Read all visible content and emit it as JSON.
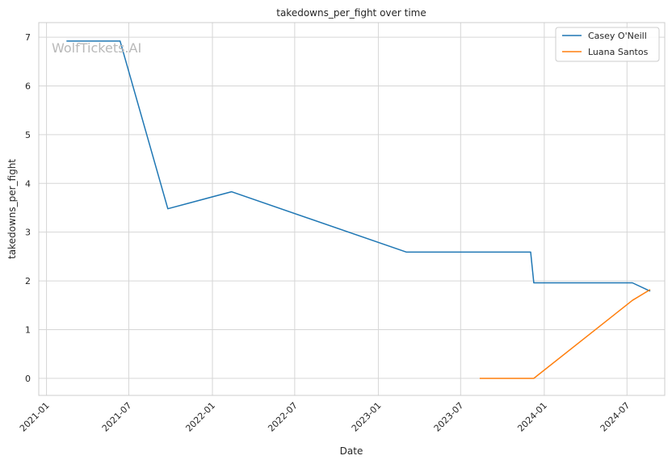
{
  "chart_data": {
    "type": "line",
    "title": "takedowns_per_fight over time",
    "xlabel": "Date",
    "ylabel": "takedowns_per_fight",
    "watermark": "WolfTickets.AI",
    "grid": true,
    "legend_position": "top-right",
    "x_ticks": [
      "2021-01",
      "2021-07",
      "2022-01",
      "2022-07",
      "2023-01",
      "2023-07",
      "2024-01",
      "2024-07"
    ],
    "y_ticks": [
      0,
      1,
      2,
      3,
      4,
      5,
      6,
      7
    ],
    "ylim": [
      -0.35,
      7.3
    ],
    "xlim": [
      "2020-12-15",
      "2024-09-22"
    ],
    "series": [
      {
        "name": "Casey O'Neill",
        "color": "#1f77b4",
        "points": [
          {
            "x": "2021-02-14",
            "y": 6.92
          },
          {
            "x": "2021-06-12",
            "y": 6.92
          },
          {
            "x": "2021-09-25",
            "y": 3.48
          },
          {
            "x": "2022-02-12",
            "y": 3.83
          },
          {
            "x": "2023-03-04",
            "y": 2.59
          },
          {
            "x": "2023-12-02",
            "y": 2.59
          },
          {
            "x": "2023-12-09",
            "y": 1.96
          },
          {
            "x": "2024-07-13",
            "y": 1.96
          },
          {
            "x": "2024-08-21",
            "y": 1.79
          }
        ]
      },
      {
        "name": "Luana Santos",
        "color": "#ff7f0e",
        "points": [
          {
            "x": "2023-08-12",
            "y": 0.0
          },
          {
            "x": "2023-12-09",
            "y": 0.0
          },
          {
            "x": "2024-07-13",
            "y": 1.6
          },
          {
            "x": "2024-08-21",
            "y": 1.82
          }
        ]
      }
    ]
  }
}
